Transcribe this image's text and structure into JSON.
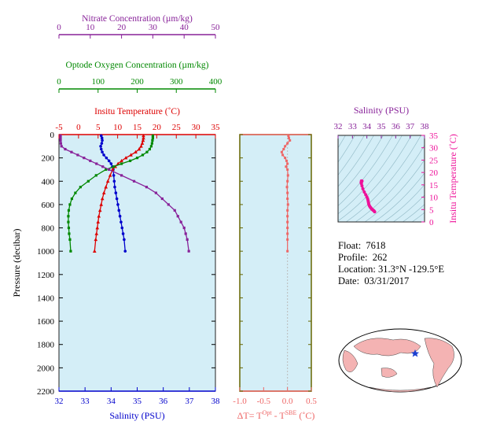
{
  "float_info": {
    "float_label": "Float:",
    "float_value": "7618",
    "profile_label": "Profile:",
    "profile_value": "262",
    "location_label": "Location:",
    "location_value": "31.3°N  -129.5°E",
    "date_label": "Date:",
    "date_value": "03/31/2017"
  },
  "colors": {
    "salinity": "#0000cc",
    "temperature": "#dd0000",
    "oxygen": "#008800",
    "nitrate": "#882299",
    "delta_t": "#ee6666",
    "ts": "#ee1199",
    "panel_bg": "#d4eef7",
    "axis_olive": "#666600"
  },
  "chart_data": [
    {
      "id": "main-profiles",
      "type": "line",
      "ylabel": "Pressure (decibar)",
      "ylim": [
        2200,
        0
      ],
      "yticks": [
        "0",
        "200",
        "400",
        "600",
        "800",
        "1000",
        "1200",
        "1400",
        "1600",
        "1800",
        "2000",
        "2200"
      ],
      "grid": false,
      "axes": {
        "salinity": {
          "label": "Salinity (PSU)",
          "ticks": [
            "32",
            "33",
            "34",
            "35",
            "36",
            "37",
            "38"
          ],
          "range": [
            32,
            38
          ]
        },
        "temperature": {
          "label": "Insitu Temperature (˚C)",
          "ticks": [
            "-5",
            "0",
            "5",
            "10",
            "15",
            "20",
            "25",
            "30",
            "35"
          ],
          "range": [
            -5,
            35
          ]
        },
        "oxygen": {
          "label": "Optode Oxygen Concentration (µm/kg)",
          "ticks": [
            "0",
            "100",
            "200",
            "300",
            "400"
          ],
          "range": [
            0,
            400
          ]
        },
        "nitrate": {
          "label": "Nitrate Concentration (µm/kg)",
          "ticks": [
            "0",
            "10",
            "20",
            "30",
            "40",
            "50"
          ],
          "range": [
            0,
            50
          ]
        }
      },
      "series": [
        {
          "axis": "salinity",
          "x": [
            33.62,
            33.65,
            33.66,
            33.64,
            33.6,
            33.62,
            33.66,
            33.72,
            33.82,
            33.92,
            34.0,
            34.05,
            34.08,
            34.1,
            34.12,
            34.14,
            34.18,
            34.22,
            34.26,
            34.3,
            34.34,
            34.38,
            34.42,
            34.46,
            34.5,
            34.54
          ],
          "y": [
            10,
            30,
            50,
            75,
            100,
            125,
            150,
            175,
            200,
            225,
            250,
            275,
            300,
            350,
            400,
            450,
            500,
            550,
            600,
            650,
            700,
            750,
            800,
            850,
            900,
            1000
          ]
        },
        {
          "axis": "temperature",
          "x": [
            16.6,
            16.6,
            16.5,
            16.3,
            16.0,
            15.5,
            14.6,
            13.4,
            12.1,
            11.0,
            10.1,
            9.4,
            8.7,
            8.1,
            7.5,
            7.0,
            6.5,
            6.1,
            5.8,
            5.5,
            5.2,
            5.0,
            4.8,
            4.6,
            4.4,
            4.1
          ],
          "y": [
            10,
            30,
            50,
            75,
            100,
            125,
            150,
            175,
            200,
            225,
            250,
            275,
            300,
            350,
            400,
            450,
            500,
            550,
            600,
            650,
            700,
            750,
            800,
            850,
            900,
            1000
          ]
        },
        {
          "axis": "oxygen",
          "x": [
            240,
            240,
            239,
            238,
            236,
            232,
            225,
            214,
            200,
            182,
            160,
            140,
            120,
            95,
            75,
            55,
            42,
            33,
            28,
            25,
            24,
            24,
            25,
            26,
            28,
            30
          ],
          "y": [
            10,
            30,
            50,
            75,
            100,
            125,
            150,
            175,
            200,
            225,
            250,
            275,
            300,
            350,
            400,
            450,
            500,
            550,
            600,
            650,
            700,
            750,
            800,
            850,
            900,
            1000
          ]
        },
        {
          "axis": "nitrate",
          "x": [
            0.5,
            0.5,
            0.5,
            0.6,
            0.8,
            2,
            4,
            6,
            8,
            10,
            12,
            14,
            16,
            20,
            24,
            28,
            31,
            33,
            35,
            37,
            38,
            39,
            40,
            40.5,
            41,
            41.5
          ],
          "y": [
            10,
            30,
            50,
            75,
            100,
            125,
            150,
            175,
            200,
            225,
            250,
            275,
            300,
            350,
            400,
            450,
            500,
            550,
            600,
            650,
            700,
            750,
            800,
            850,
            900,
            1000
          ]
        }
      ]
    },
    {
      "id": "delta-t",
      "type": "line",
      "xlabel_parts": [
        "ΔT= T",
        "Opt",
        " - T",
        "SBE",
        " (˚C)"
      ],
      "xticks": [
        "-1.0",
        "-0.5",
        "0.0",
        "0.5"
      ],
      "xlim": [
        -1.0,
        0.5
      ],
      "ylim": [
        2200,
        0
      ],
      "x": [
        0.02,
        0.03,
        0.05,
        0.0,
        -0.05,
        -0.08,
        -0.12,
        -0.1,
        -0.05,
        -0.02,
        0.0,
        -0.03,
        0.0,
        0.01,
        0.0,
        -0.01,
        0.0,
        0.0,
        0.01,
        0.0,
        0.0,
        0.0,
        0.0,
        0.0,
        0.0,
        0.0
      ],
      "y": [
        10,
        30,
        50,
        75,
        100,
        125,
        150,
        175,
        200,
        225,
        250,
        275,
        300,
        350,
        400,
        450,
        500,
        550,
        600,
        650,
        700,
        750,
        800,
        850,
        900,
        1000
      ]
    },
    {
      "id": "ts-diagram",
      "type": "scatter",
      "xlabel": "Salinity (PSU)",
      "ylabel": "Insitu Temperature (˚C)",
      "xticks": [
        "32",
        "33",
        "34",
        "35",
        "36",
        "37",
        "38"
      ],
      "yticks": [
        "0",
        "5",
        "10",
        "15",
        "20",
        "25",
        "30",
        "35"
      ],
      "xlim": [
        32,
        38
      ],
      "ylim": [
        0,
        35
      ],
      "x": [
        34.54,
        34.5,
        34.46,
        34.42,
        34.38,
        34.34,
        34.3,
        34.26,
        34.22,
        34.18,
        34.14,
        34.12,
        34.1,
        34.08,
        34.05,
        34.0,
        33.92,
        33.82,
        33.72,
        33.66,
        33.62,
        33.6,
        33.64,
        33.66,
        33.65,
        33.62
      ],
      "y": [
        4.1,
        4.4,
        4.6,
        4.8,
        5.0,
        5.2,
        5.5,
        5.8,
        6.1,
        6.5,
        7.0,
        7.5,
        8.1,
        8.7,
        9.4,
        10.1,
        11.0,
        12.1,
        13.4,
        14.6,
        15.5,
        16.0,
        16.3,
        16.5,
        16.6,
        16.6
      ]
    }
  ]
}
